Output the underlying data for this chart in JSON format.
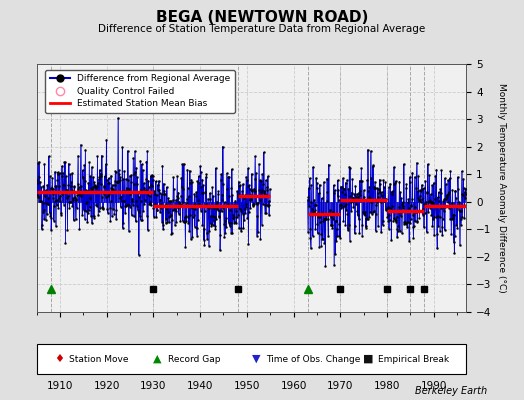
{
  "title": "BEGA (NEWTOWN ROAD)",
  "subtitle": "Difference of Station Temperature Data from Regional Average",
  "ylabel": "Monthly Temperature Anomaly Difference (°C)",
  "xlim": [
    1905,
    1997
  ],
  "ylim": [
    -4,
    5
  ],
  "yticks": [
    -4,
    -3,
    -2,
    -1,
    0,
    1,
    2,
    3,
    4,
    5
  ],
  "xticks": [
    1910,
    1920,
    1930,
    1940,
    1950,
    1960,
    1970,
    1980,
    1990
  ],
  "background_color": "#e0e0e0",
  "plot_bg_color": "#f0f0f0",
  "data_color": "#0000cc",
  "bias_color": "#ff0000",
  "gap_start": 1955,
  "gap_end": 1963,
  "bias_segments": [
    {
      "start": 1905,
      "end": 1930,
      "value": 0.35
    },
    {
      "start": 1930,
      "end": 1948,
      "value": -0.15
    },
    {
      "start": 1948,
      "end": 1955,
      "value": 0.2
    },
    {
      "start": 1963,
      "end": 1970,
      "value": -0.45
    },
    {
      "start": 1970,
      "end": 1980,
      "value": 0.05
    },
    {
      "start": 1980,
      "end": 1988,
      "value": -0.35
    },
    {
      "start": 1988,
      "end": 1997,
      "value": -0.15
    }
  ],
  "record_gaps": [
    1908,
    1963
  ],
  "empirical_breaks": [
    1930,
    1948,
    1970,
    1980,
    1985,
    1988
  ],
  "vertical_lines": [
    1908,
    1930,
    1948,
    1963,
    1970,
    1980,
    1985,
    1988
  ],
  "watermark": "Berkeley Earth",
  "seed": 42
}
